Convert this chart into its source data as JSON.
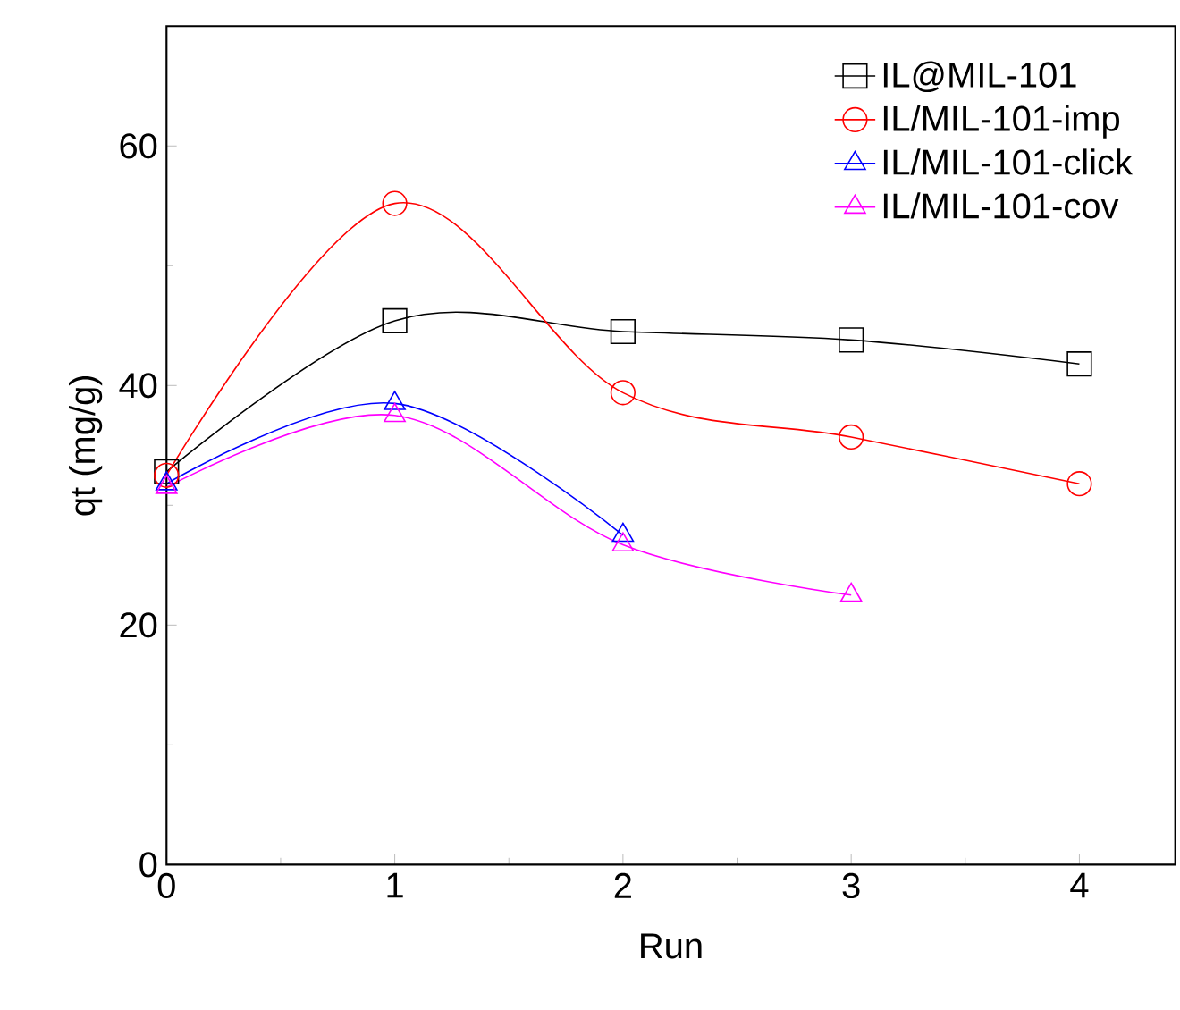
{
  "chart_data": {
    "type": "line",
    "xlabel": "Run",
    "ylabel": "qt (mg/g)",
    "x": [
      0,
      1,
      2,
      3,
      4
    ],
    "xlim": [
      0,
      4.42
    ],
    "xticks": [
      0,
      1,
      2,
      3,
      4
    ],
    "ylim": [
      0,
      70
    ],
    "yticks": [
      0,
      20,
      40,
      60
    ],
    "legend": "top right",
    "grid": false,
    "series": [
      {
        "name": "IL@MIL-101",
        "color": "#000000",
        "marker": "square",
        "values": [
          32.8,
          45.4,
          44.5,
          43.8,
          41.8
        ]
      },
      {
        "name": "IL/MIL-101-imp",
        "color": "#ff0000",
        "marker": "circle",
        "values": [
          32.5,
          55.2,
          39.4,
          35.7,
          31.8
        ]
      },
      {
        "name": "IL/MIL-101-click",
        "color": "#0000ff",
        "marker": "triangle",
        "values": [
          31.8,
          38.5,
          27.5,
          null,
          null
        ]
      },
      {
        "name": "IL/MIL-101-cov",
        "color": "#ff00ff",
        "marker": "triangle-down",
        "values": [
          31.5,
          37.5,
          26.7,
          22.5,
          null
        ]
      }
    ]
  }
}
